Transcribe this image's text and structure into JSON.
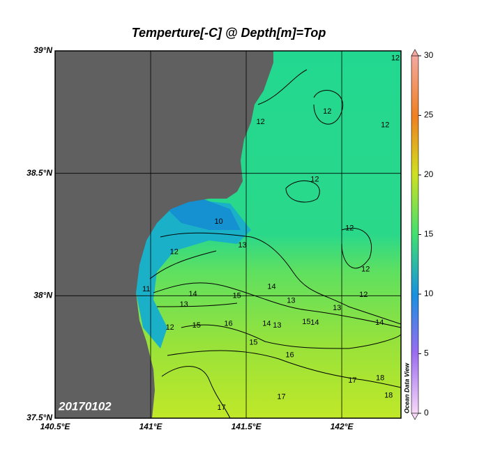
{
  "title": "Temperture[-C] @ Depth[m]=Top",
  "map": {
    "lon_range": [
      140.5,
      142.31
    ],
    "lat_range": [
      37.5,
      39
    ],
    "lon_ticks": [
      {
        "value": 140.5,
        "label": "140.5°E"
      },
      {
        "value": 141,
        "label": "141°E"
      },
      {
        "value": 141.5,
        "label": "141.5°E"
      },
      {
        "value": 142,
        "label": "142°E"
      }
    ],
    "lat_ticks": [
      {
        "value": 37.5,
        "label": "37.5°N"
      },
      {
        "value": 38,
        "label": "38°N"
      },
      {
        "value": 38.5,
        "label": "38.5°N"
      },
      {
        "value": 39,
        "label": "39°N"
      }
    ],
    "date": "20170102",
    "credit": "Ocean Data View",
    "contour_labels": [
      {
        "value": 12,
        "lon": 141.924,
        "lat": 38.752
      },
      {
        "value": 12,
        "lon": 142.227,
        "lat": 38.696
      },
      {
        "value": 12,
        "lon": 141.859,
        "lat": 38.474
      },
      {
        "value": 10,
        "lon": 141.356,
        "lat": 38.303
      },
      {
        "value": 13,
        "lon": 141.48,
        "lat": 38.206
      },
      {
        "value": 12,
        "lon": 141.123,
        "lat": 38.178
      },
      {
        "value": 12,
        "lon": 142.041,
        "lat": 38.275
      },
      {
        "value": 12,
        "lon": 142.125,
        "lat": 38.107
      },
      {
        "value": 12,
        "lon": 142.114,
        "lat": 38.004
      },
      {
        "value": 11,
        "lon": 140.977,
        "lat": 38.027
      },
      {
        "value": 14,
        "lon": 141.221,
        "lat": 38.007
      },
      {
        "value": 13,
        "lon": 141.174,
        "lat": 37.964
      },
      {
        "value": 15,
        "lon": 141.451,
        "lat": 37.999
      },
      {
        "value": 14,
        "lon": 141.633,
        "lat": 38.036
      },
      {
        "value": 13,
        "lon": 141.735,
        "lat": 37.979
      },
      {
        "value": 13,
        "lon": 141.975,
        "lat": 37.95
      },
      {
        "value": 14,
        "lon": 142.198,
        "lat": 37.89
      },
      {
        "value": 14,
        "lon": 141.607,
        "lat": 37.885
      },
      {
        "value": 13,
        "lon": 141.662,
        "lat": 37.879
      },
      {
        "value": 15,
        "lon": 141.815,
        "lat": 37.893
      },
      {
        "value": 14,
        "lon": 141.859,
        "lat": 37.89
      },
      {
        "value": 12,
        "lon": 141.101,
        "lat": 37.87
      },
      {
        "value": 15,
        "lon": 141.24,
        "lat": 37.879
      },
      {
        "value": 15,
        "lon": 141.538,
        "lat": 37.808
      },
      {
        "value": 16,
        "lon": 141.407,
        "lat": 37.885
      },
      {
        "value": 16,
        "lon": 141.728,
        "lat": 37.757
      },
      {
        "value": 17,
        "lon": 142.056,
        "lat": 37.654
      },
      {
        "value": 18,
        "lon": 142.201,
        "lat": 37.663
      },
      {
        "value": 18,
        "lon": 142.245,
        "lat": 37.592
      },
      {
        "value": 17,
        "lon": 141.371,
        "lat": 37.543
      },
      {
        "value": 17,
        "lon": 141.684,
        "lat": 37.586
      },
      {
        "value": 12,
        "lon": 141.575,
        "lat": 38.71
      },
      {
        "value": 12,
        "lon": 142.281,
        "lat": 38.97
      }
    ]
  },
  "colorbar": {
    "range": [
      0,
      30
    ],
    "ticks": [
      0,
      5,
      10,
      15,
      20,
      25,
      30
    ]
  }
}
